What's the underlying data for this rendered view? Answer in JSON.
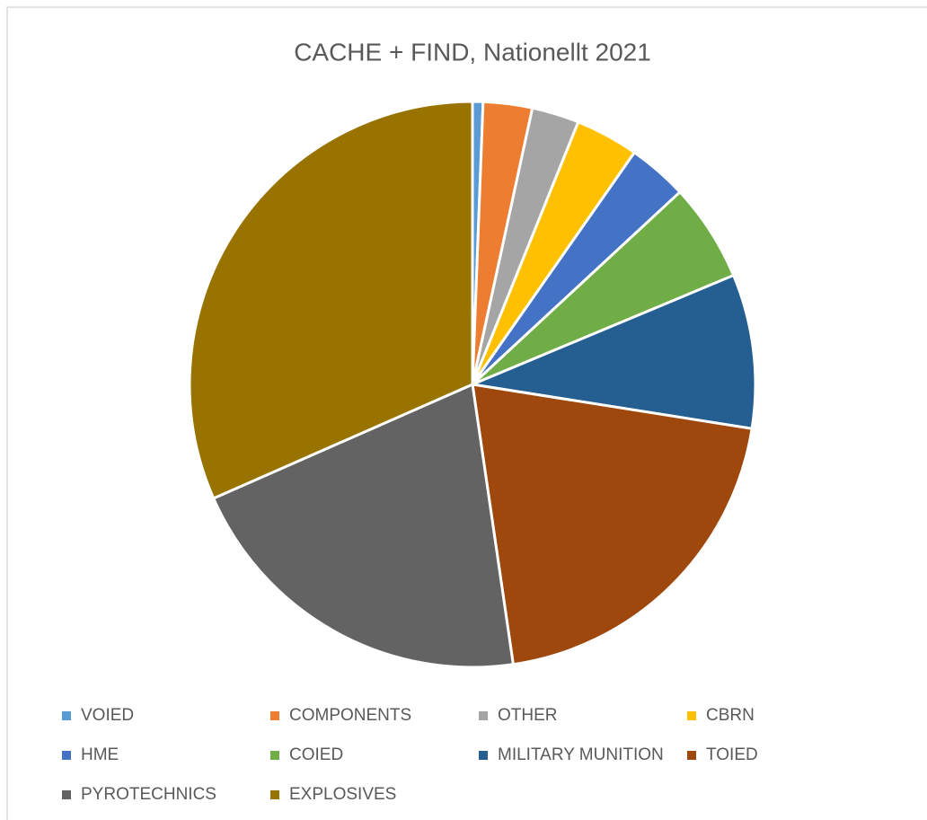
{
  "chart_data": {
    "type": "pie",
    "title": "CACHE + FIND, Nationellt 2021",
    "categories": [
      "VOIED",
      "COMPONENTS",
      "OTHER",
      "CBRN",
      "HME",
      "COIED",
      "MILITARY MUNITION",
      "TOIED",
      "PYROTECHNICS",
      "EXPLOSIVES"
    ],
    "values": [
      0.6,
      2.8,
      2.7,
      3.6,
      3.4,
      5.6,
      8.8,
      20.2,
      20.7,
      31.6
    ],
    "colors": [
      "#5b9bd5",
      "#ed7d31",
      "#a5a5a5",
      "#ffc000",
      "#4472c4",
      "#70ad47",
      "#255e91",
      "#9e480e",
      "#636363",
      "#997300"
    ],
    "legend": "bottom"
  }
}
